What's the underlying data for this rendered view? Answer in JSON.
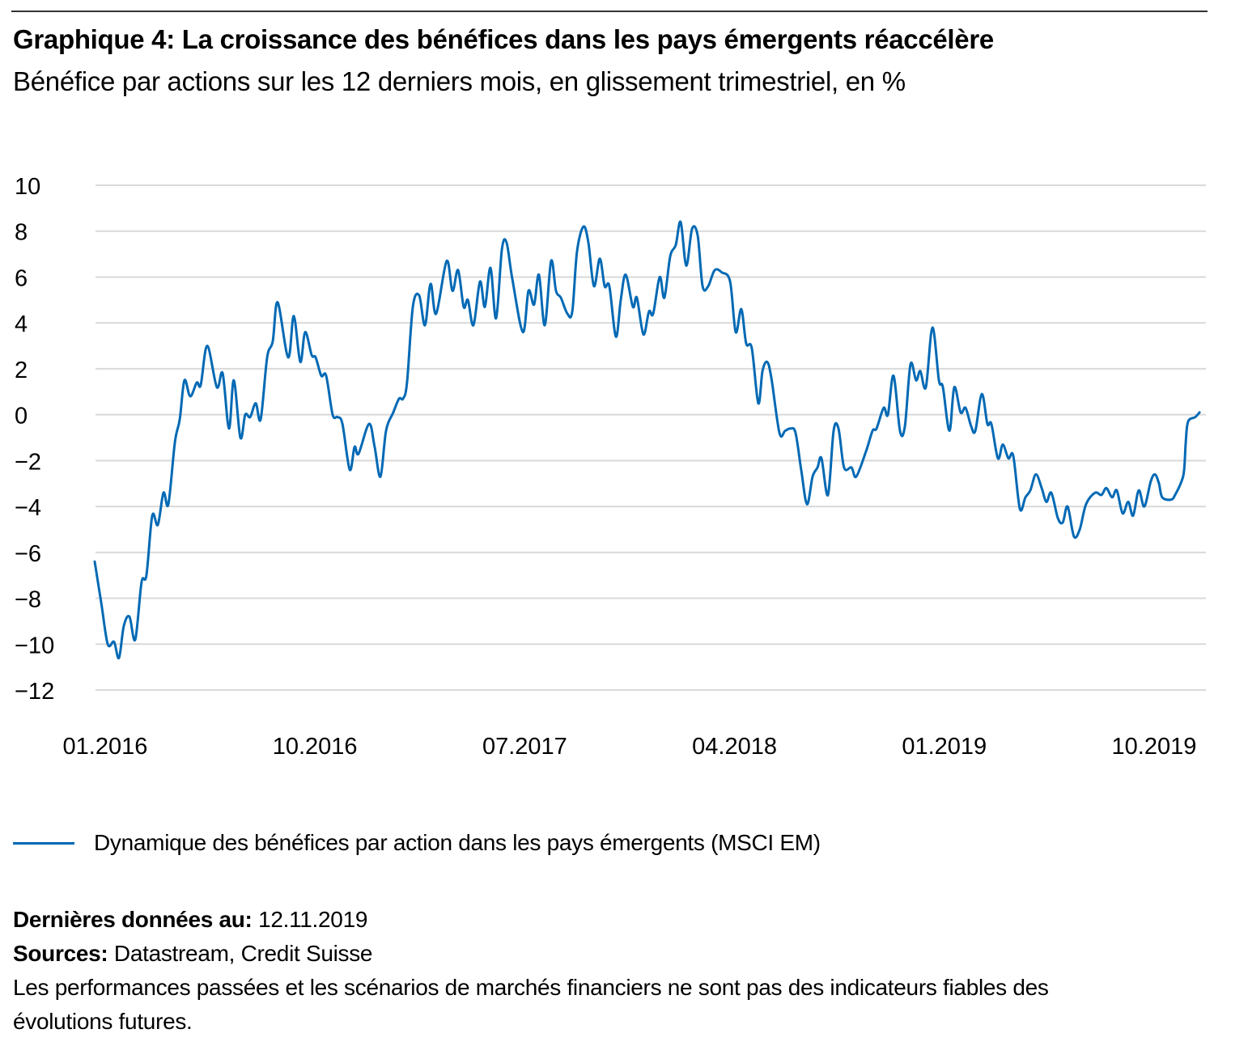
{
  "header": {
    "title": "Graphique 4: La croissance des bénéfices dans les pays émergents réaccélère",
    "subtitle": "Bénéfice par actions sur les 12 derniers mois, en glissement trimestriel, en %"
  },
  "legend": {
    "label": "Dynamique des bénéfices par action dans les pays émergents (MSCI EM)",
    "color": "#0069B4"
  },
  "footer": {
    "last_data_label": "Dernières données au:",
    "last_data_value": "12.11.2019",
    "sources_label": "Sources:",
    "sources_value": "Datastream, Credit Suisse",
    "disclaimer_line1": "Les performances passées et les scénarios de marchés financiers ne sont pas des indicateurs fiables des",
    "disclaimer_line2": "évolutions futures."
  },
  "chart_data": {
    "type": "line",
    "title": "Graphique 4: La croissance des bénéfices dans les pays émergents réaccélère",
    "subtitle": "Bénéfice par actions sur les 12 derniers mois, en glissement trimestriel, en %",
    "xlabel": "",
    "ylabel": "",
    "x_unit": "months since 01.2016",
    "xlim": [
      0,
      47.4
    ],
    "ylim": [
      -12,
      10
    ],
    "grid": true,
    "legend_position": "bottom-left",
    "y_ticks": [
      10,
      8,
      6,
      4,
      2,
      0,
      -2,
      -4,
      -6,
      -8,
      -10,
      -12
    ],
    "y_tick_labels": [
      "10",
      "8",
      "6",
      "4",
      "2",
      "0",
      "−2",
      "−4",
      "−6",
      "−8",
      "−10",
      "−12"
    ],
    "x_ticks": [
      0,
      9,
      18,
      27,
      36,
      45
    ],
    "x_tick_labels": [
      "01.2016",
      "10.2016",
      "07.2017",
      "04.2018",
      "01.2019",
      "10.2019"
    ],
    "series": [
      {
        "name": "Dynamique des bénéfices par action dans les pays émergents (MSCI EM)",
        "color": "#0069B4",
        "x": [
          0.0,
          0.28,
          0.56,
          0.83,
          1.04,
          1.25,
          1.49,
          1.74,
          2.01,
          2.22,
          2.47,
          2.71,
          2.95,
          3.16,
          3.44,
          3.65,
          3.85,
          4.1,
          4.38,
          4.55,
          4.83,
          5.24,
          5.49,
          5.76,
          5.97,
          6.25,
          6.46,
          6.67,
          6.91,
          7.12,
          7.4,
          7.64,
          7.85,
          8.3,
          8.54,
          8.82,
          9.03,
          9.31,
          9.48,
          9.72,
          9.93,
          10.21,
          10.42,
          10.63,
          10.94,
          11.15,
          11.32,
          11.77,
          12.01,
          12.26,
          12.5,
          12.81,
          13.06,
          13.23,
          13.4,
          13.65,
          13.92,
          14.17,
          14.41,
          14.65,
          15.1,
          15.35,
          15.59,
          15.83,
          16.01,
          16.25,
          16.53,
          16.74,
          16.98,
          17.22,
          17.47,
          17.67,
          17.92,
          18.37,
          18.61,
          18.85,
          19.06,
          19.31,
          19.58,
          19.79,
          20.0,
          20.28,
          20.49,
          20.69,
          20.97,
          21.18,
          21.42,
          21.67,
          21.88,
          22.08,
          22.36,
          22.57,
          22.78,
          23.09,
          23.26,
          23.54,
          23.78,
          23.96,
          24.24,
          24.44,
          24.69,
          24.93,
          25.14,
          25.38,
          25.63,
          25.87,
          26.08,
          26.32,
          26.6,
          26.91,
          27.26,
          27.5,
          27.74,
          27.95,
          28.19,
          28.47,
          28.65,
          28.85,
          29.03,
          29.38,
          29.62,
          29.86,
          30.07,
          30.31,
          30.56,
          30.8,
          31.01,
          31.18,
          31.46,
          31.7,
          31.91,
          32.15,
          32.47,
          32.67,
          33.09,
          33.37,
          33.54,
          33.85,
          34.03,
          34.27,
          34.55,
          34.76,
          35.0,
          35.24,
          35.42,
          35.66,
          35.94,
          36.22,
          36.39,
          36.67,
          36.88,
          37.15,
          37.36,
          37.6,
          37.78,
          38.06,
          38.3,
          38.47,
          38.75,
          38.96,
          39.2,
          39.41,
          39.69,
          39.93,
          40.14,
          40.38,
          40.63,
          40.83,
          41.04,
          41.32,
          41.53,
          41.74,
          42.01,
          42.26,
          42.53,
          42.92,
          43.19,
          43.4,
          43.65,
          43.85,
          44.1,
          44.34,
          44.55,
          44.79,
          45.03,
          45.31,
          45.49,
          45.66,
          45.8,
          46.18,
          46.35,
          46.63,
          46.74,
          46.81,
          46.91,
          47.22,
          47.4
        ],
        "values": [
          -6.4,
          -8.2,
          -10.0,
          -9.9,
          -10.6,
          -9.2,
          -8.8,
          -9.8,
          -7.3,
          -7.0,
          -4.4,
          -4.8,
          -3.4,
          -3.9,
          -1.2,
          -0.2,
          1.5,
          0.8,
          1.4,
          1.3,
          3.0,
          1.2,
          1.8,
          -0.6,
          1.5,
          -1.0,
          0.0,
          -0.1,
          0.5,
          -0.2,
          2.5,
          3.2,
          4.9,
          2.5,
          4.3,
          2.3,
          3.6,
          2.6,
          2.5,
          1.7,
          1.7,
          0.0,
          -0.1,
          -0.4,
          -2.4,
          -1.4,
          -1.7,
          -0.4,
          -1.4,
          -2.7,
          -0.7,
          0.1,
          0.7,
          0.7,
          1.4,
          4.7,
          5.2,
          3.9,
          5.7,
          4.4,
          6.7,
          5.4,
          6.3,
          4.7,
          5.0,
          3.9,
          5.8,
          4.7,
          6.4,
          4.2,
          7.2,
          7.5,
          5.9,
          3.6,
          5.4,
          4.8,
          6.1,
          3.9,
          6.7,
          5.4,
          5.1,
          4.4,
          4.5,
          7.1,
          8.2,
          7.5,
          5.6,
          6.8,
          5.6,
          5.6,
          3.4,
          5.0,
          6.1,
          4.7,
          5.1,
          3.5,
          4.5,
          4.4,
          6.0,
          5.1,
          6.9,
          7.4,
          8.4,
          6.5,
          8.1,
          7.8,
          5.6,
          5.6,
          6.3,
          6.2,
          5.8,
          3.6,
          4.6,
          3.1,
          2.9,
          0.5,
          1.9,
          2.3,
          1.6,
          -0.8,
          -0.7,
          -0.6,
          -0.8,
          -2.4,
          -3.9,
          -2.7,
          -2.3,
          -1.9,
          -3.5,
          -0.7,
          -0.6,
          -2.3,
          -2.3,
          -2.7,
          -1.6,
          -0.7,
          -0.6,
          0.3,
          0.0,
          1.7,
          -0.7,
          -0.5,
          2.2,
          1.5,
          1.9,
          1.2,
          3.8,
          1.5,
          1.2,
          -0.7,
          1.2,
          0.1,
          0.3,
          -0.5,
          -0.7,
          0.9,
          -0.4,
          -0.4,
          -1.9,
          -1.3,
          -1.9,
          -1.8,
          -4.1,
          -3.6,
          -3.3,
          -2.6,
          -3.2,
          -3.8,
          -3.4,
          -4.5,
          -4.7,
          -4.0,
          -5.3,
          -5.0,
          -3.9,
          -3.4,
          -3.5,
          -3.2,
          -3.6,
          -3.3,
          -4.3,
          -3.8,
          -4.4,
          -3.3,
          -4.0,
          -2.9,
          -2.6,
          -3.0,
          -3.6,
          -3.7,
          -3.5,
          -2.9,
          -2.4,
          -1.2,
          -0.3,
          -0.1,
          0.1
        ]
      }
    ]
  }
}
